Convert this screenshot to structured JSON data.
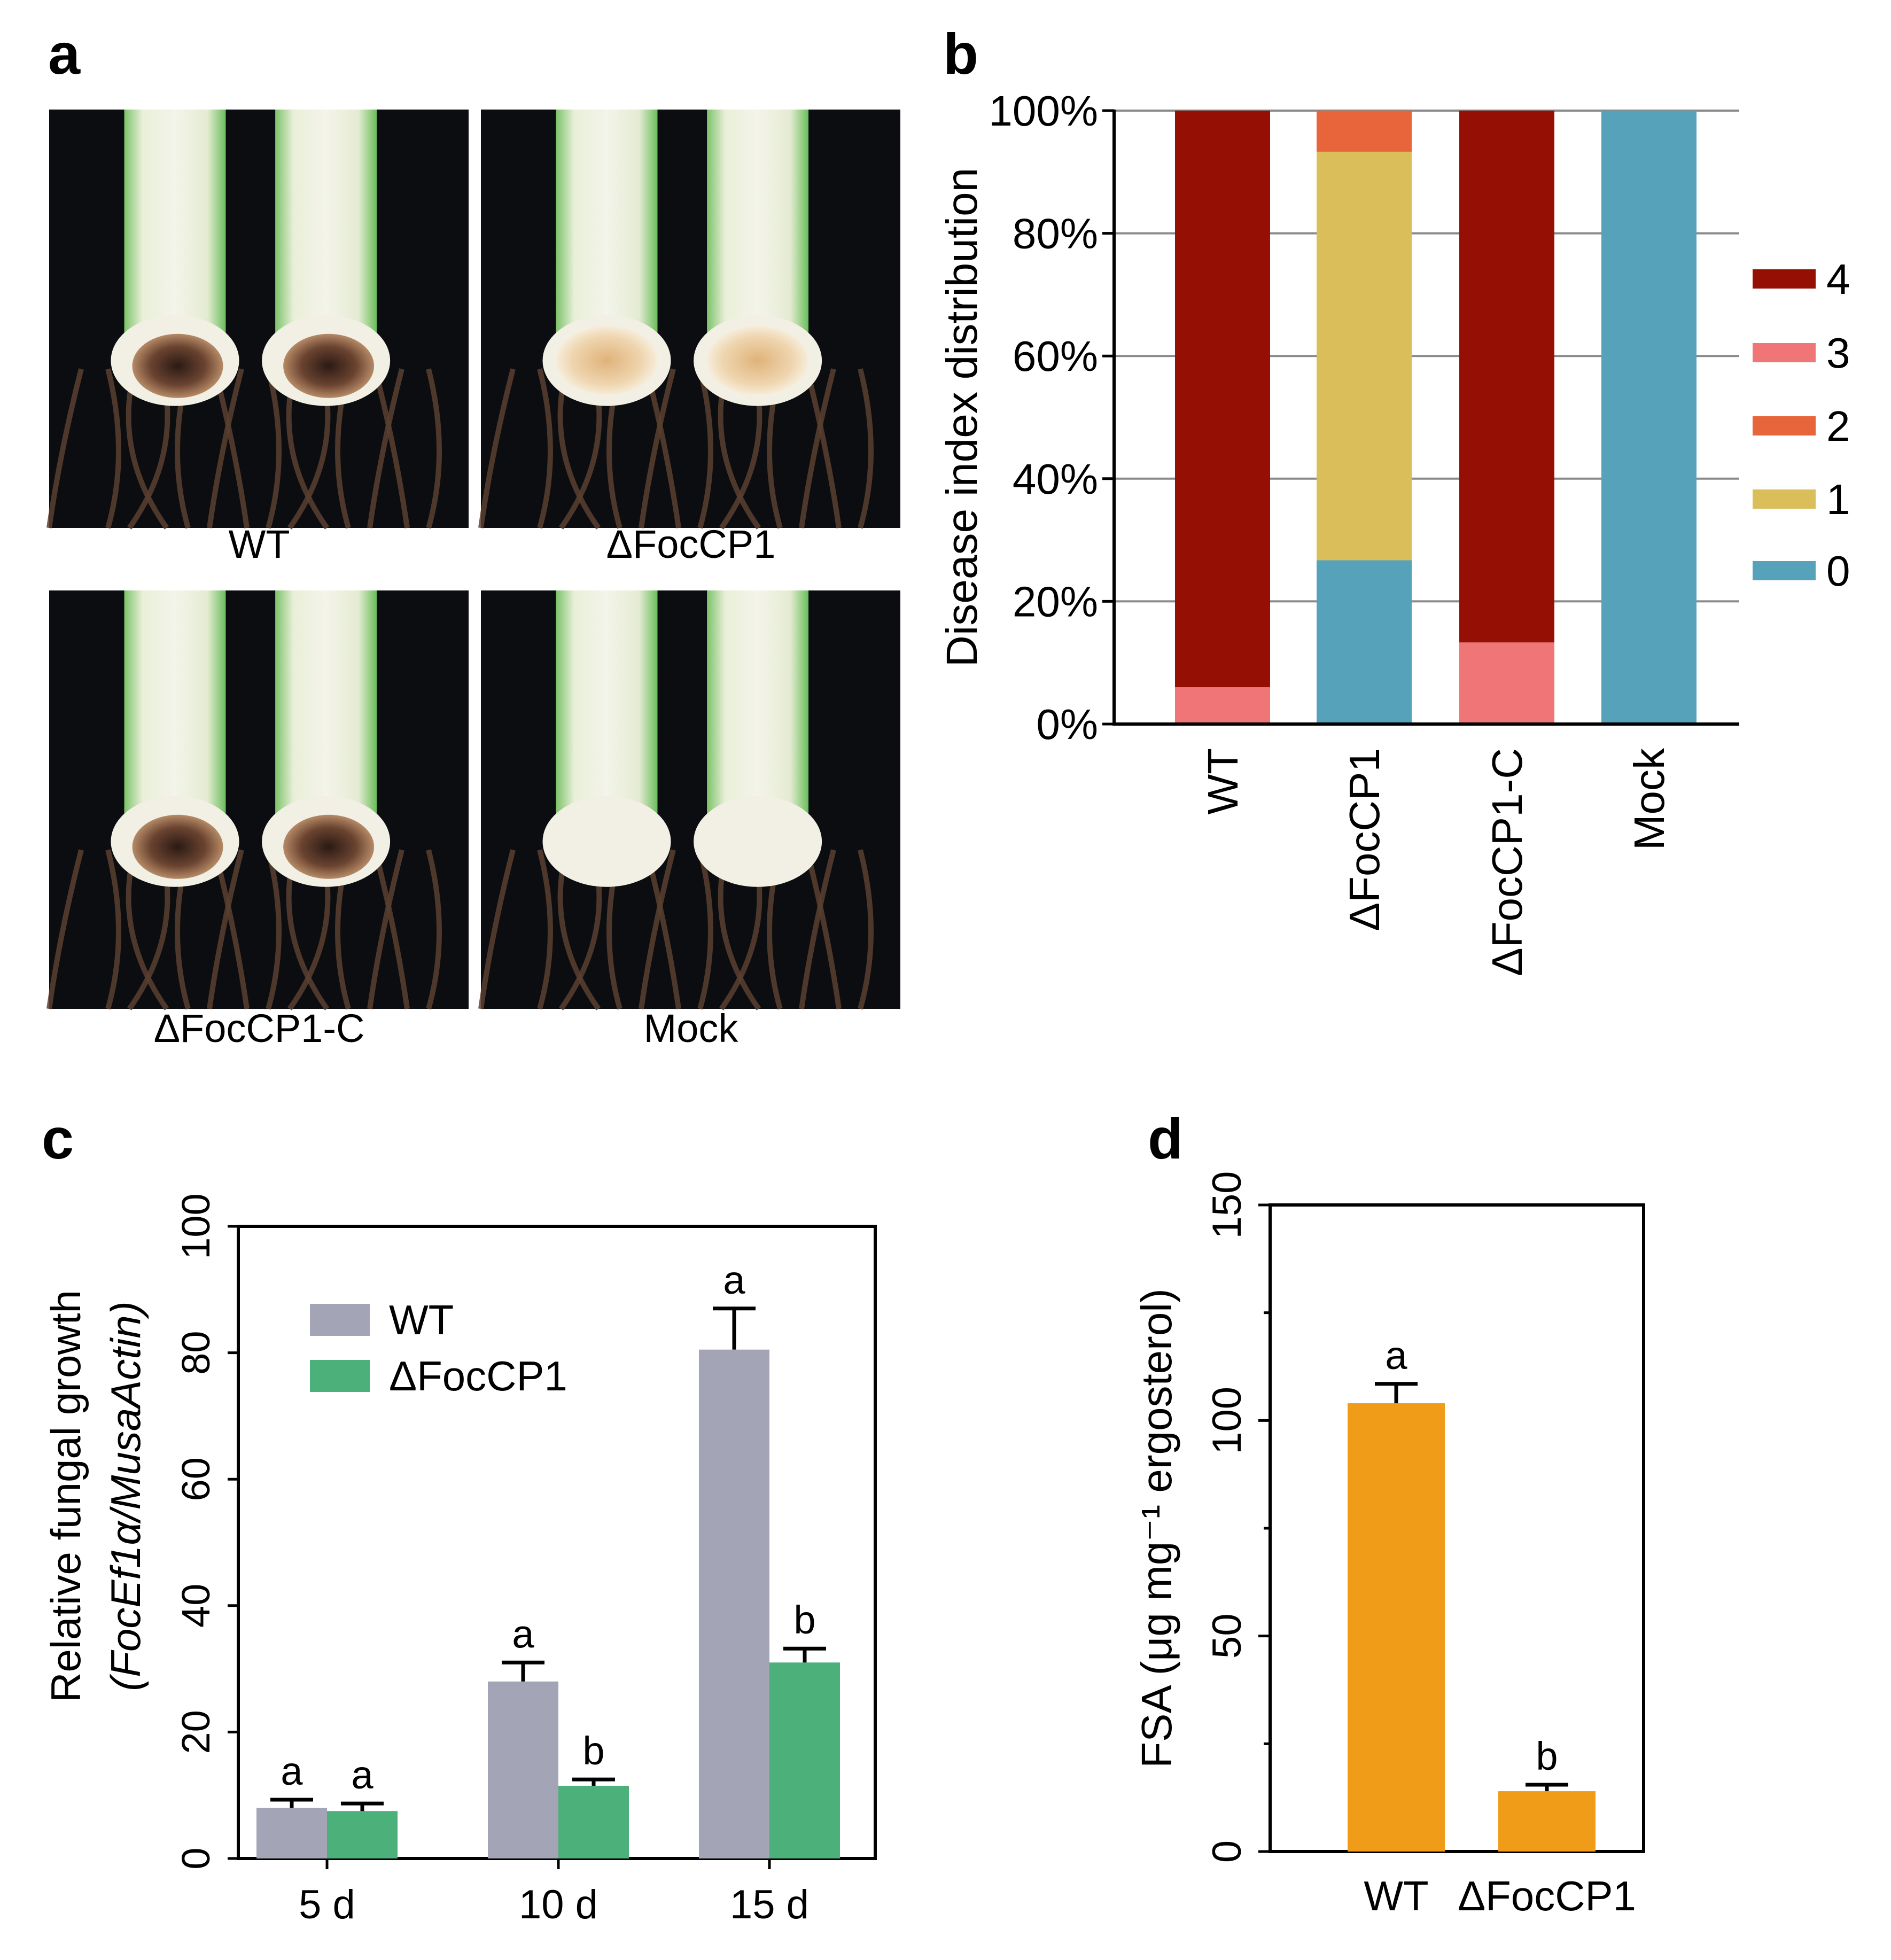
{
  "panels": {
    "a": {
      "label": "a",
      "photos": [
        {
          "caption": "WT",
          "icon": "rhizome-cross-section-photo",
          "lesion": "severe"
        },
        {
          "caption": "ΔFocCP1",
          "icon": "rhizome-cross-section-photo",
          "lesion": "mild"
        },
        {
          "caption": "ΔFocCP1-C",
          "icon": "rhizome-cross-section-photo",
          "lesion": "severe"
        },
        {
          "caption": "Mock",
          "icon": "rhizome-cross-section-photo",
          "lesion": "none"
        }
      ]
    }
  },
  "colors": {
    "di4": "#950f04",
    "di3": "#ef7576",
    "di2": "#e8643a",
    "di1": "#d9be5a",
    "di0": "#57a2bb",
    "wt_grey": "#a3a4b5",
    "mutant_green": "#4bb07a",
    "fsa_orange": "#f09c18"
  },
  "chart_data": [
    {
      "panel_label": "b",
      "type": "bar",
      "stacked": true,
      "categories": [
        "WT",
        "ΔFocCP1",
        "ΔFocCP1-C",
        "Mock"
      ],
      "series": [
        {
          "name": "0",
          "values": [
            0,
            26.7,
            0,
            100
          ]
        },
        {
          "name": "1",
          "values": [
            0,
            66.6,
            0,
            0
          ]
        },
        {
          "name": "2",
          "values": [
            0,
            6.7,
            0,
            0
          ]
        },
        {
          "name": "3",
          "values": [
            6.0,
            0,
            13.3,
            0
          ]
        },
        {
          "name": "4",
          "values": [
            94.0,
            0,
            86.7,
            0
          ]
        }
      ],
      "legend_order": [
        "4",
        "3",
        "2",
        "1",
        "0"
      ],
      "ylabel": "Disease index distribution",
      "xlabel": "",
      "ylim": [
        0,
        100
      ],
      "yticks": [
        "0%",
        "20%",
        "40%",
        "60%",
        "80%",
        "100%"
      ],
      "grid": true,
      "legend_position": "right"
    },
    {
      "panel_label": "c",
      "type": "bar",
      "categories": [
        "5 d",
        "10 d",
        "15 d"
      ],
      "series": [
        {
          "name": "WT",
          "values": [
            8,
            28,
            80.5
          ],
          "errors": [
            1.3,
            3,
            6.5
          ],
          "letters": [
            "a",
            "a",
            "a"
          ]
        },
        {
          "name": "ΔFocCP1",
          "values": [
            7.5,
            11.5,
            31
          ],
          "errors": [
            1.2,
            1,
            2.2
          ],
          "letters": [
            "a",
            "b",
            "b"
          ]
        }
      ],
      "ylabel_line1": "Relative fungal growth",
      "ylabel_line2": "(FocEf1α/MusaActin)",
      "xlabel": "",
      "ylim": [
        0,
        100
      ],
      "yticks": [
        "0",
        "20",
        "40",
        "60",
        "80",
        "100"
      ],
      "grid": false,
      "legend_position": "top-left"
    },
    {
      "panel_label": "d",
      "type": "bar",
      "categories": [
        "WT",
        "ΔFocCP1"
      ],
      "values": [
        104,
        14
      ],
      "errors": [
        4.5,
        1.5
      ],
      "letters": [
        "a",
        "b"
      ],
      "ylabel": "FSA (μg mg⁻¹ ergosterol)",
      "xlabel": "",
      "ylim": [
        0,
        150
      ],
      "yticks": [
        "0",
        "50",
        "100",
        "150"
      ],
      "grid": false
    }
  ]
}
